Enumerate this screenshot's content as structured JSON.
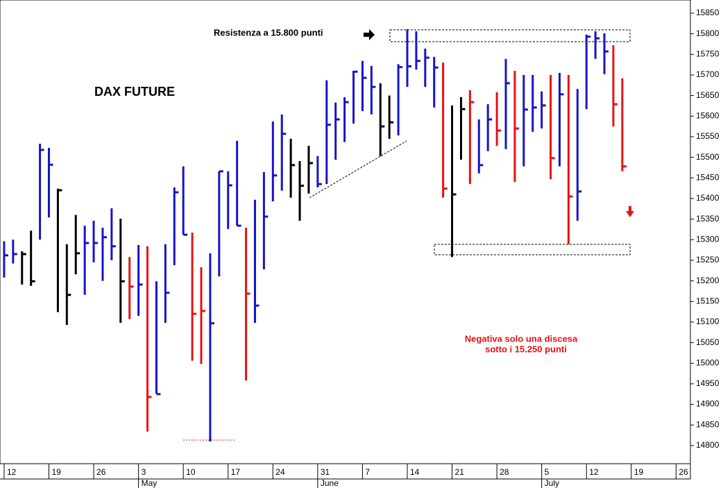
{
  "chart_data": {
    "type": "ohlc",
    "title": "DAX FUTURE",
    "annotations": [
      "Resistenza a 15.800 punti",
      "Negativa solo una discesa",
      "sotto i 15.250 punti"
    ],
    "x": [
      0,
      1,
      2,
      3,
      4,
      5,
      6,
      7,
      8,
      9,
      10,
      11,
      12,
      13,
      14,
      15,
      16,
      17,
      18,
      19,
      20,
      21,
      22,
      23,
      24,
      25,
      26,
      27,
      28,
      29,
      30,
      31,
      32,
      33,
      34,
      35,
      36,
      37,
      38,
      39,
      40,
      41,
      42,
      43,
      44,
      45,
      46,
      47,
      48,
      49,
      50,
      51,
      52,
      53,
      54,
      55,
      56,
      57,
      58,
      59,
      60,
      61,
      62,
      63,
      64,
      65,
      66,
      67,
      68,
      69
    ],
    "high": [
      15296,
      15300,
      15272,
      15322,
      15533,
      15523,
      15424,
      15289,
      15360,
      15334,
      15346,
      15329,
      15376,
      15351,
      15258,
      15287,
      15284,
      15199,
      15289,
      15427,
      15478,
      15317,
      15233,
      15267,
      15466,
      15466,
      15540,
      15329,
      15397,
      15464,
      15587,
      15604,
      15545,
      15491,
      15528,
      15503,
      15687,
      15633,
      15646,
      15710,
      15734,
      15722,
      15680,
      15650,
      15726,
      15811,
      15806,
      15764,
      15744,
      15730,
      15626,
      15646,
      15663,
      15592,
      15629,
      15658,
      15739,
      15710,
      15700,
      15700,
      15660,
      15700,
      15705,
      15700,
      15666,
      15798,
      15806,
      15801,
      15772,
      15692
    ],
    "low": [
      15208,
      15242,
      15191,
      15188,
      15300,
      15354,
      15124,
      15093,
      15216,
      15166,
      15245,
      15200,
      15250,
      15098,
      15107,
      15115,
      14834,
      14926,
      15098,
      15238,
      15312,
      15006,
      14998,
      14810,
      15211,
      15326,
      15334,
      14958,
      15098,
      15228,
      15393,
      15419,
      15402,
      15346,
      15412,
      15427,
      15435,
      15494,
      15537,
      15582,
      15612,
      15604,
      15503,
      15545,
      15553,
      15671,
      15713,
      15671,
      15621,
      15402,
      15258,
      15494,
      15435,
      15461,
      15515,
      15528,
      15520,
      15440,
      15478,
      15562,
      15570,
      15447,
      15478,
      15289,
      15346,
      15617,
      15739,
      15702,
      15575,
      15466
    ],
    "close": [
      15262,
      15265,
      15265,
      15199,
      15518,
      15482,
      15420,
      15166,
      15267,
      15292,
      15292,
      15306,
      15284,
      15199,
      15186,
      15191,
      14918,
      14925,
      15171,
      15415,
      15312,
      15120,
      15127,
      15097,
      15466,
      15432,
      15334,
      15169,
      15140,
      15356,
      15456,
      15557,
      15481,
      15431,
      15486,
      15435,
      15579,
      15592,
      15634,
      15708,
      15693,
      15671,
      15575,
      15585,
      15719,
      15721,
      15734,
      15742,
      15718,
      15424,
      15410,
      15617,
      15634,
      15481,
      15592,
      15565,
      15680,
      15570,
      15616,
      15621,
      15626,
      15498,
      15653,
      15405,
      15417,
      15793,
      15789,
      15757,
      15629,
      15478
    ],
    "colors": [
      "#1414c8",
      "#1414c8",
      "#000000",
      "#000000",
      "#1414c8",
      "#1414c8",
      "#000000",
      "#000000",
      "#000000",
      "#1414c8",
      "#1414c8",
      "#1414c8",
      "#1414c8",
      "#000000",
      "#e81010",
      "#1414c8",
      "#e81010",
      "#1414c8",
      "#1414c8",
      "#1414c8",
      "#1414c8",
      "#e81010",
      "#e81010",
      "#1414c8",
      "#1414c8",
      "#1414c8",
      "#1414c8",
      "#e81010",
      "#1414c8",
      "#1414c8",
      "#1414c8",
      "#1414c8",
      "#000000",
      "#000000",
      "#000000",
      "#1414c8",
      "#1414c8",
      "#1414c8",
      "#1414c8",
      "#1414c8",
      "#1414c8",
      "#1414c8",
      "#000000",
      "#000000",
      "#1414c8",
      "#1414c8",
      "#1414c8",
      "#1414c8",
      "#1414c8",
      "#e81010",
      "#000000",
      "#000000",
      "#e81010",
      "#1414c8",
      "#1414c8",
      "#e81010",
      "#1414c8",
      "#e81010",
      "#1414c8",
      "#1414c8",
      "#1414c8",
      "#e81010",
      "#1414c8",
      "#e81010",
      "#1414c8",
      "#1414c8",
      "#1414c8",
      "#1414c8",
      "#e81010",
      "#e81010"
    ],
    "xlim": [
      -0.46,
      76.6
    ],
    "xticks": [
      {
        "value": 0,
        "label": "12"
      },
      {
        "value": 5,
        "label": "19"
      },
      {
        "value": 10,
        "label": "26"
      },
      {
        "value": 15,
        "label": "3"
      },
      {
        "value": 20,
        "label": "10"
      },
      {
        "value": 25,
        "label": "17"
      },
      {
        "value": 30,
        "label": "24"
      },
      {
        "value": 35,
        "label": "31"
      },
      {
        "value": 40,
        "label": "7"
      },
      {
        "value": 45,
        "label": "14"
      },
      {
        "value": 50,
        "label": "21"
      },
      {
        "value": 55,
        "label": "28"
      },
      {
        "value": 60,
        "label": "5"
      },
      {
        "value": 65,
        "label": "12"
      },
      {
        "value": 70,
        "label": "19"
      },
      {
        "value": 75,
        "label": "26"
      }
    ],
    "months": [
      {
        "value": 15,
        "label": "May"
      },
      {
        "value": 35,
        "label": "June"
      },
      {
        "value": 60,
        "label": "July"
      }
    ],
    "ylim": [
      14756,
      15882
    ],
    "yticks": [
      14800,
      14850,
      14900,
      14950,
      15000,
      15050,
      15100,
      15150,
      15200,
      15250,
      15300,
      15350,
      15400,
      15450,
      15500,
      15550,
      15600,
      15650,
      15700,
      15750,
      15800,
      15850
    ],
    "grid": false
  }
}
